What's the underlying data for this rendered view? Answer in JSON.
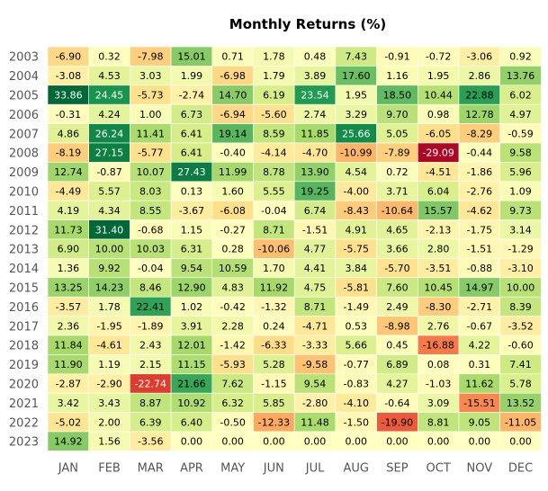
{
  "chart_data": {
    "type": "heatmap",
    "title": "Monthly Returns (%)",
    "xlabel": "",
    "ylabel": "",
    "colormap": "RdYlGn",
    "color_range": [
      -30,
      30
    ],
    "x": [
      "JAN",
      "FEB",
      "MAR",
      "APR",
      "MAY",
      "JUN",
      "JUL",
      "AUG",
      "SEP",
      "OCT",
      "NOV",
      "DEC"
    ],
    "y": [
      "2003",
      "2004",
      "2005",
      "2006",
      "2007",
      "2008",
      "2009",
      "2010",
      "2011",
      "2012",
      "2013",
      "2014",
      "2015",
      "2016",
      "2017",
      "2018",
      "2019",
      "2020",
      "2021",
      "2022",
      "2023"
    ],
    "values": [
      [
        "-6.90",
        "0.32",
        "-7.98",
        "15.01",
        "0.71",
        "1.78",
        "0.48",
        "7.43",
        "-0.91",
        "-0.72",
        "-3.06",
        "0.92"
      ],
      [
        "-3.08",
        "4.53",
        "3.03",
        "1.99",
        "-6.98",
        "1.79",
        "3.89",
        "17.60",
        "1.16",
        "1.95",
        "2.86",
        "13.76"
      ],
      [
        "33.86",
        "24.45",
        "-5.73",
        "-2.74",
        "14.70",
        "6.19",
        "23.54",
        "1.95",
        "18.50",
        "10.44",
        "22.88",
        "6.02"
      ],
      [
        "-0.31",
        "4.24",
        "1.00",
        "6.73",
        "-6.94",
        "-5.60",
        "2.74",
        "3.29",
        "9.70",
        "0.98",
        "12.78",
        "4.97"
      ],
      [
        "4.86",
        "26.24",
        "11.41",
        "6.41",
        "19.14",
        "8.59",
        "11.85",
        "25.66",
        "5.05",
        "-6.05",
        "-8.29",
        "-0.59"
      ],
      [
        "-8.19",
        "27.15",
        "-5.77",
        "6.41",
        "-0.40",
        "-4.14",
        "-4.70",
        "-10.99",
        "-7.89",
        "-29.09",
        "-0.44",
        "9.58"
      ],
      [
        "12.74",
        "-0.87",
        "10.07",
        "27.43",
        "11.99",
        "8.78",
        "13.90",
        "4.54",
        "0.72",
        "-4.51",
        "-1.86",
        "5.96"
      ],
      [
        "-4.49",
        "5.57",
        "8.03",
        "0.13",
        "1.60",
        "5.55",
        "19.25",
        "-4.00",
        "3.71",
        "6.04",
        "-2.76",
        "1.09"
      ],
      [
        "4.19",
        "4.34",
        "8.55",
        "-3.67",
        "-6.08",
        "-0.04",
        "6.74",
        "-8.43",
        "-10.64",
        "15.57",
        "-4.62",
        "9.73"
      ],
      [
        "11.73",
        "31.40",
        "-0.68",
        "1.15",
        "-0.27",
        "8.71",
        "-1.51",
        "4.91",
        "4.65",
        "-2.13",
        "-1.75",
        "3.14"
      ],
      [
        "6.90",
        "10.00",
        "10.03",
        "6.31",
        "0.28",
        "-10.06",
        "4.77",
        "-5.75",
        "3.66",
        "2.80",
        "-1.51",
        "-1.29"
      ],
      [
        "1.36",
        "9.92",
        "-0.04",
        "9.54",
        "10.59",
        "1.70",
        "4.41",
        "3.84",
        "-5.70",
        "-3.51",
        "-0.88",
        "-3.10"
      ],
      [
        "13.25",
        "14.23",
        "8.46",
        "12.90",
        "4.83",
        "11.92",
        "4.75",
        "-5.81",
        "7.60",
        "10.45",
        "14.97",
        "10.00"
      ],
      [
        "-3.57",
        "1.78",
        "22.41",
        "1.02",
        "-0.42",
        "-1.32",
        "8.71",
        "-1.49",
        "2.49",
        "-8.30",
        "-2.71",
        "8.39"
      ],
      [
        "2.36",
        "-1.95",
        "-1.89",
        "3.91",
        "2.28",
        "0.24",
        "-4.71",
        "0.53",
        "-8.98",
        "2.76",
        "-0.67",
        "-3.52"
      ],
      [
        "11.84",
        "-4.61",
        "2.43",
        "12.01",
        "-1.42",
        "-6.33",
        "-3.33",
        "5.66",
        "0.45",
        "-16.88",
        "4.22",
        "-0.60"
      ],
      [
        "11.90",
        "1.19",
        "2.15",
        "11.15",
        "-5.93",
        "5.28",
        "-9.58",
        "-0.77",
        "6.89",
        "0.08",
        "0.31",
        "7.41"
      ],
      [
        "-2.87",
        "-2.90",
        "-22.74",
        "21.66",
        "7.62",
        "-1.15",
        "9.54",
        "-0.83",
        "4.27",
        "-1.03",
        "11.62",
        "5.78"
      ],
      [
        "3.42",
        "3.43",
        "8.87",
        "10.92",
        "6.32",
        "5.85",
        "-2.80",
        "-4.10",
        "-0.64",
        "3.09",
        "-15.51",
        "13.52"
      ],
      [
        "-5.02",
        "2.00",
        "6.39",
        "6.40",
        "-0.50",
        "-12.33",
        "11.48",
        "-1.50",
        "-19.90",
        "8.81",
        "9.05",
        "-11.05"
      ],
      [
        "14.92",
        "1.56",
        "-3.56",
        "0.00",
        "0.00",
        "0.00",
        "0.00",
        "0.00",
        "0.00",
        "0.00",
        "0.00",
        "0.00"
      ]
    ]
  }
}
